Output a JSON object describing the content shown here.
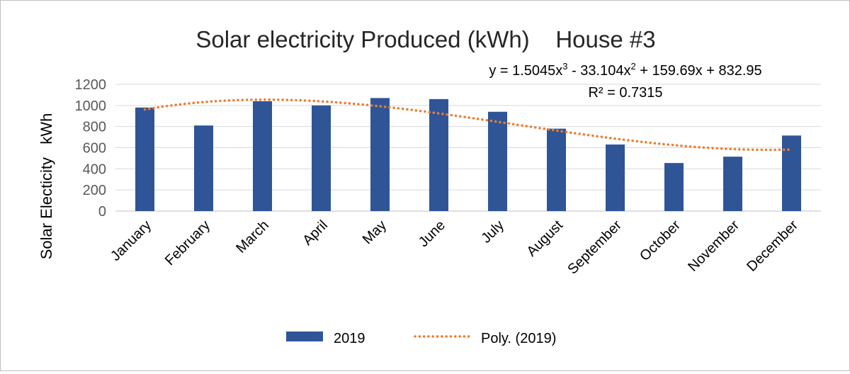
{
  "chart_data": {
    "type": "bar",
    "title": "Solar electricity Produced (kWh)    House #3",
    "ylabel": "Solar Electicity   kWh",
    "xlabel": "",
    "categories": [
      "January",
      "February",
      "March",
      "April",
      "May",
      "June",
      "July",
      "August",
      "September",
      "October",
      "November",
      "December"
    ],
    "series": [
      {
        "name": "2019",
        "values": [
          980,
          810,
          1040,
          1000,
          1070,
          1060,
          940,
          780,
          630,
          455,
          515,
          715
        ],
        "color": "#2f5597"
      }
    ],
    "trendline": {
      "name": "Poly. (2019)",
      "type": "polynomial",
      "order": 3,
      "coefficients": {
        "a3": 1.5045,
        "a2": -33.104,
        "a1": 159.69,
        "a0": 832.95
      },
      "equation_parts": {
        "prefix": "y = 1.5045x",
        "exp1": "3",
        "mid": " - 33.104x",
        "exp2": "2",
        "suffix": " + 159.69x + 832.95"
      },
      "r_squared": "R² = 0.7315",
      "color": "#ed7d31"
    },
    "ylim": [
      0,
      1200
    ],
    "yticks": [
      0,
      200,
      400,
      600,
      800,
      1000,
      1200
    ],
    "grid": true,
    "legend_position": "bottom"
  }
}
